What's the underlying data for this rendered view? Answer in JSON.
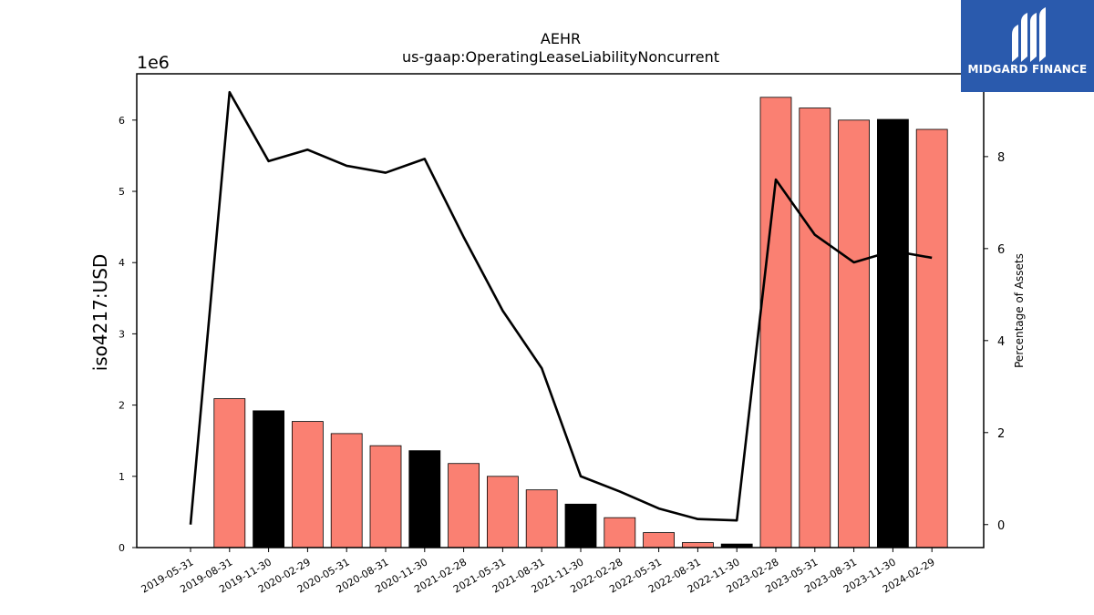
{
  "chart_data": {
    "type": "bar",
    "title": "AEHR",
    "subtitle": "us-gaap:OperatingLeaseLiabilityNoncurrent",
    "ylabel": "iso4217:USD",
    "y_offset_label": "1e6",
    "y2label": "Percentage of Assets",
    "ylim": [
      0,
      6650000
    ],
    "y2lim": [
      -0.5,
      9.8
    ],
    "yticks": [
      "0",
      "1",
      "2",
      "3",
      "4",
      "5",
      "6"
    ],
    "y2ticks": [
      "0",
      "2",
      "4",
      "6",
      "8"
    ],
    "categories": [
      "2019-05-31",
      "2019-08-31",
      "2019-11-30",
      "2020-02-29",
      "2020-05-31",
      "2020-08-31",
      "2020-11-30",
      "2021-02-28",
      "2021-05-31",
      "2021-08-31",
      "2021-11-30",
      "2022-02-28",
      "2022-05-31",
      "2022-08-31",
      "2022-11-30",
      "2023-02-28",
      "2023-05-31",
      "2023-08-31",
      "2023-11-30",
      "2024-02-29"
    ],
    "series": [
      {
        "type": "bar",
        "values": [
          0,
          2090000,
          1920000,
          1770000,
          1600000,
          1430000,
          1360000,
          1180000,
          1000000,
          810000,
          610000,
          420000,
          210000,
          70000,
          50000,
          6320000,
          6170000,
          6000000,
          6010000,
          5870000
        ],
        "colors": [
          "#fa8072",
          "#fa8072",
          "#000000",
          "#fa8072",
          "#fa8072",
          "#fa8072",
          "#000000",
          "#fa8072",
          "#fa8072",
          "#fa8072",
          "#000000",
          "#fa8072",
          "#fa8072",
          "#fa8072",
          "#000000",
          "#fa8072",
          "#fa8072",
          "#fa8072",
          "#000000",
          "#fa8072"
        ]
      },
      {
        "type": "line",
        "axis": "right",
        "color": "#000000",
        "values": [
          0.0,
          9.4,
          7.9,
          8.15,
          7.8,
          7.65,
          7.95,
          6.25,
          4.65,
          3.4,
          1.05,
          0.72,
          0.35,
          0.12,
          0.09,
          7.5,
          6.3,
          5.7,
          5.95,
          5.8
        ]
      }
    ]
  },
  "watermark": {
    "brand": "MIDGARD FINANCE",
    "icon": "midgard-logo-icon",
    "bg_color": "#2a5aad"
  }
}
